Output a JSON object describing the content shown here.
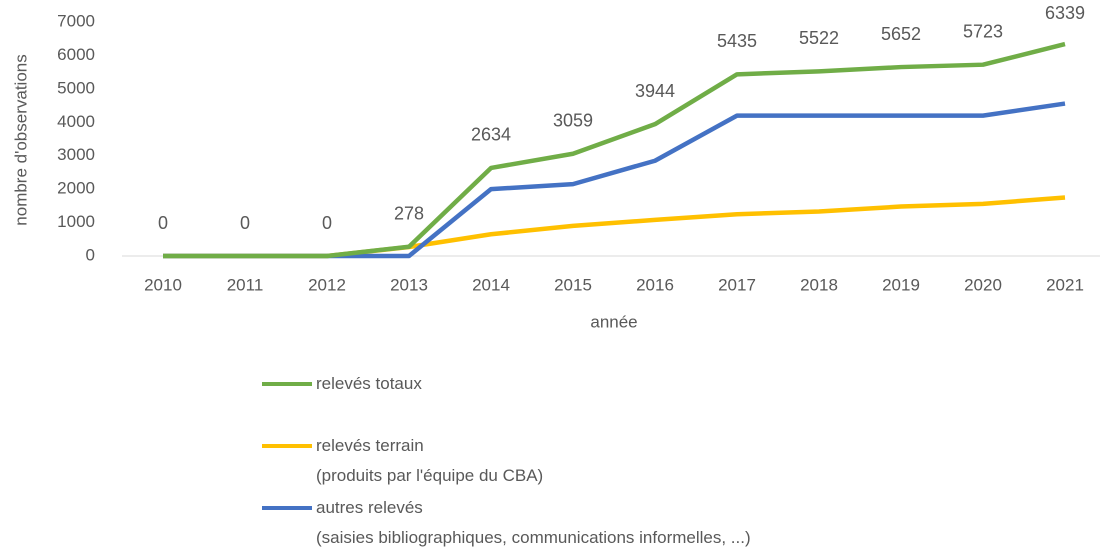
{
  "chart_data": {
    "type": "line",
    "y_label": "nombre d'observations",
    "x_label": "année",
    "categories": [
      "2010",
      "2011",
      "2012",
      "2013",
      "2014",
      "2015",
      "2016",
      "2017",
      "2018",
      "2019",
      "2020",
      "2021"
    ],
    "series": [
      {
        "name": "relevés totaux",
        "color": "#70ad47",
        "data_labels": true,
        "values": [
          0,
          0,
          0,
          278,
          2634,
          3059,
          3944,
          5435,
          5522,
          5652,
          5723,
          6339
        ]
      },
      {
        "name": "relevés terrain\n(produits par l'équipe du CBA)",
        "color": "#ffc000",
        "data_labels": false,
        "values": [
          0,
          0,
          0,
          270,
          650,
          900,
          1080,
          1250,
          1330,
          1480,
          1560,
          1750
        ]
      },
      {
        "name": "autres relevés\n(saisies bibliographiques, communications informelles, ...)",
        "color": "#4472c4",
        "data_labels": false,
        "values": [
          0,
          0,
          0,
          0,
          2000,
          2150,
          2850,
          4200,
          4200,
          4200,
          4200,
          4560
        ]
      }
    ],
    "ylim": [
      0,
      7000
    ],
    "yticks": [
      0,
      1000,
      2000,
      3000,
      4000,
      5000,
      6000,
      7000
    ],
    "grid": false
  }
}
